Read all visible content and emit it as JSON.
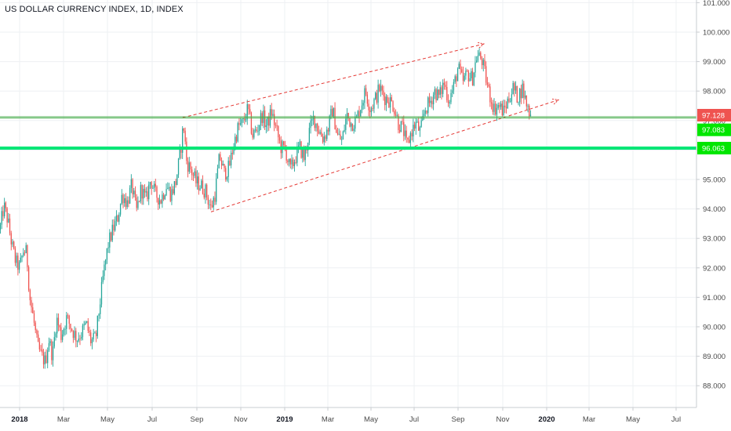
{
  "header": {
    "title": "US DOLLAR CURRENCY INDEX, 1D, INDEX"
  },
  "colors": {
    "up": "#26a69a",
    "down": "#ef5350",
    "grid": "#eef0f3",
    "channel": "#e53935",
    "level_thin": "#4caf50",
    "level_thick": "#00e676",
    "last_price_tag": "#ef5350",
    "level_tag": "#00e600"
  },
  "chart_data": {
    "type": "candlestick",
    "title": "US DOLLAR CURRENCY INDEX, 1D, INDEX",
    "ylim": [
      87.4,
      101.3
    ],
    "y_ticks": [
      "101.000",
      "100.000",
      "99.000",
      "98.000",
      "97.000",
      "96.000",
      "95.000",
      "94.000",
      "93.000",
      "92.000",
      "91.000",
      "90.000",
      "89.000",
      "88.000"
    ],
    "x_ticks": [
      "2018",
      "Mar",
      "May",
      "Jul",
      "Sep",
      "Nov",
      "2019",
      "Mar",
      "May",
      "Jul",
      "Sep",
      "Nov",
      "2020",
      "Mar",
      "May",
      "Jul"
    ],
    "x_ticks_bold": [
      "2018",
      "2019",
      "2020"
    ],
    "price_path": [
      [
        0,
        93.3
      ],
      [
        5,
        94.1
      ],
      [
        10,
        93.6
      ],
      [
        15,
        92.8
      ],
      [
        20,
        92.2
      ],
      [
        25,
        92.0
      ],
      [
        30,
        92.6
      ],
      [
        34,
        92.5
      ],
      [
        38,
        91.0
      ],
      [
        43,
        90.2
      ],
      [
        48,
        89.3
      ],
      [
        53,
        89.0
      ],
      [
        58,
        88.8
      ],
      [
        62,
        89.6
      ],
      [
        67,
        89.0
      ],
      [
        72,
        90.3
      ],
      [
        78,
        89.7
      ],
      [
        85,
        90.3
      ],
      [
        92,
        89.9
      ],
      [
        98,
        89.6
      ],
      [
        104,
        89.8
      ],
      [
        110,
        90.1
      ],
      [
        116,
        89.5
      ],
      [
        122,
        89.6
      ],
      [
        127,
        90.7
      ],
      [
        132,
        91.8
      ],
      [
        138,
        92.8
      ],
      [
        144,
        93.3
      ],
      [
        150,
        93.7
      ],
      [
        156,
        94.5
      ],
      [
        162,
        94.2
      ],
      [
        168,
        94.8
      ],
      [
        174,
        93.9
      ],
      [
        180,
        94.7
      ],
      [
        186,
        94.3
      ],
      [
        192,
        95.0
      ],
      [
        198,
        94.5
      ],
      [
        205,
        94.3
      ],
      [
        212,
        94.8
      ],
      [
        218,
        94.5
      ],
      [
        224,
        94.9
      ],
      [
        230,
        95.9
      ],
      [
        234,
        96.9
      ],
      [
        238,
        95.6
      ],
      [
        244,
        95.3
      ],
      [
        250,
        94.9
      ],
      [
        256,
        94.8
      ],
      [
        262,
        94.6
      ],
      [
        269,
        94.0
      ],
      [
        274,
        94.5
      ],
      [
        280,
        95.8
      ],
      [
        286,
        95.2
      ],
      [
        292,
        95.4
      ],
      [
        298,
        96.2
      ],
      [
        304,
        96.8
      ],
      [
        310,
        96.9
      ],
      [
        316,
        97.4
      ],
      [
        322,
        96.5
      ],
      [
        328,
        96.7
      ],
      [
        334,
        97.2
      ],
      [
        340,
        96.8
      ],
      [
        346,
        97.3
      ],
      [
        352,
        96.7
      ],
      [
        358,
        96.1
      ],
      [
        364,
        96.0
      ],
      [
        370,
        95.3
      ],
      [
        376,
        95.7
      ],
      [
        382,
        96.1
      ],
      [
        388,
        95.7
      ],
      [
        394,
        96.6
      ],
      [
        400,
        97.1
      ],
      [
        406,
        96.7
      ],
      [
        412,
        96.4
      ],
      [
        418,
        96.7
      ],
      [
        424,
        97.4
      ],
      [
        430,
        96.5
      ],
      [
        436,
        96.3
      ],
      [
        442,
        97.2
      ],
      [
        448,
        96.9
      ],
      [
        454,
        97.0
      ],
      [
        460,
        97.5
      ],
      [
        466,
        98.0
      ],
      [
        472,
        97.4
      ],
      [
        478,
        97.7
      ],
      [
        484,
        98.1
      ],
      [
        490,
        97.8
      ],
      [
        496,
        97.7
      ],
      [
        502,
        97.5
      ],
      [
        508,
        96.9
      ],
      [
        514,
        96.7
      ],
      [
        519,
        96.1
      ],
      [
        524,
        96.6
      ],
      [
        530,
        96.9
      ],
      [
        536,
        96.6
      ],
      [
        542,
        97.4
      ],
      [
        548,
        97.6
      ],
      [
        554,
        98.0
      ],
      [
        560,
        97.8
      ],
      [
        566,
        98.3
      ],
      [
        572,
        97.7
      ],
      [
        578,
        98.1
      ],
      [
        584,
        98.8
      ],
      [
        590,
        98.3
      ],
      [
        596,
        98.6
      ],
      [
        602,
        98.4
      ],
      [
        608,
        99.2
      ],
      [
        614,
        99.1
      ],
      [
        618,
        98.6
      ],
      [
        624,
        97.9
      ],
      [
        630,
        97.4
      ],
      [
        636,
        97.5
      ],
      [
        642,
        97.3
      ],
      [
        648,
        97.7
      ],
      [
        654,
        98.1
      ],
      [
        660,
        97.8
      ],
      [
        666,
        98.1
      ],
      [
        671,
        97.6
      ],
      [
        675,
        97.3
      ],
      [
        678,
        97.13
      ]
    ],
    "trend_channel": {
      "upper": [
        [
          233,
          97.1
        ],
        [
          617,
          99.6
        ]
      ],
      "lower": [
        [
          269,
          93.9
        ],
        [
          712,
          97.7
        ]
      ]
    },
    "levels": [
      {
        "value": 97.128,
        "label": "97.128",
        "kind": "last-price"
      },
      {
        "value": 97.083,
        "label": "97.083",
        "kind": "support-thin"
      },
      {
        "value": 96.063,
        "label": "96.063",
        "kind": "support-thick"
      }
    ]
  }
}
